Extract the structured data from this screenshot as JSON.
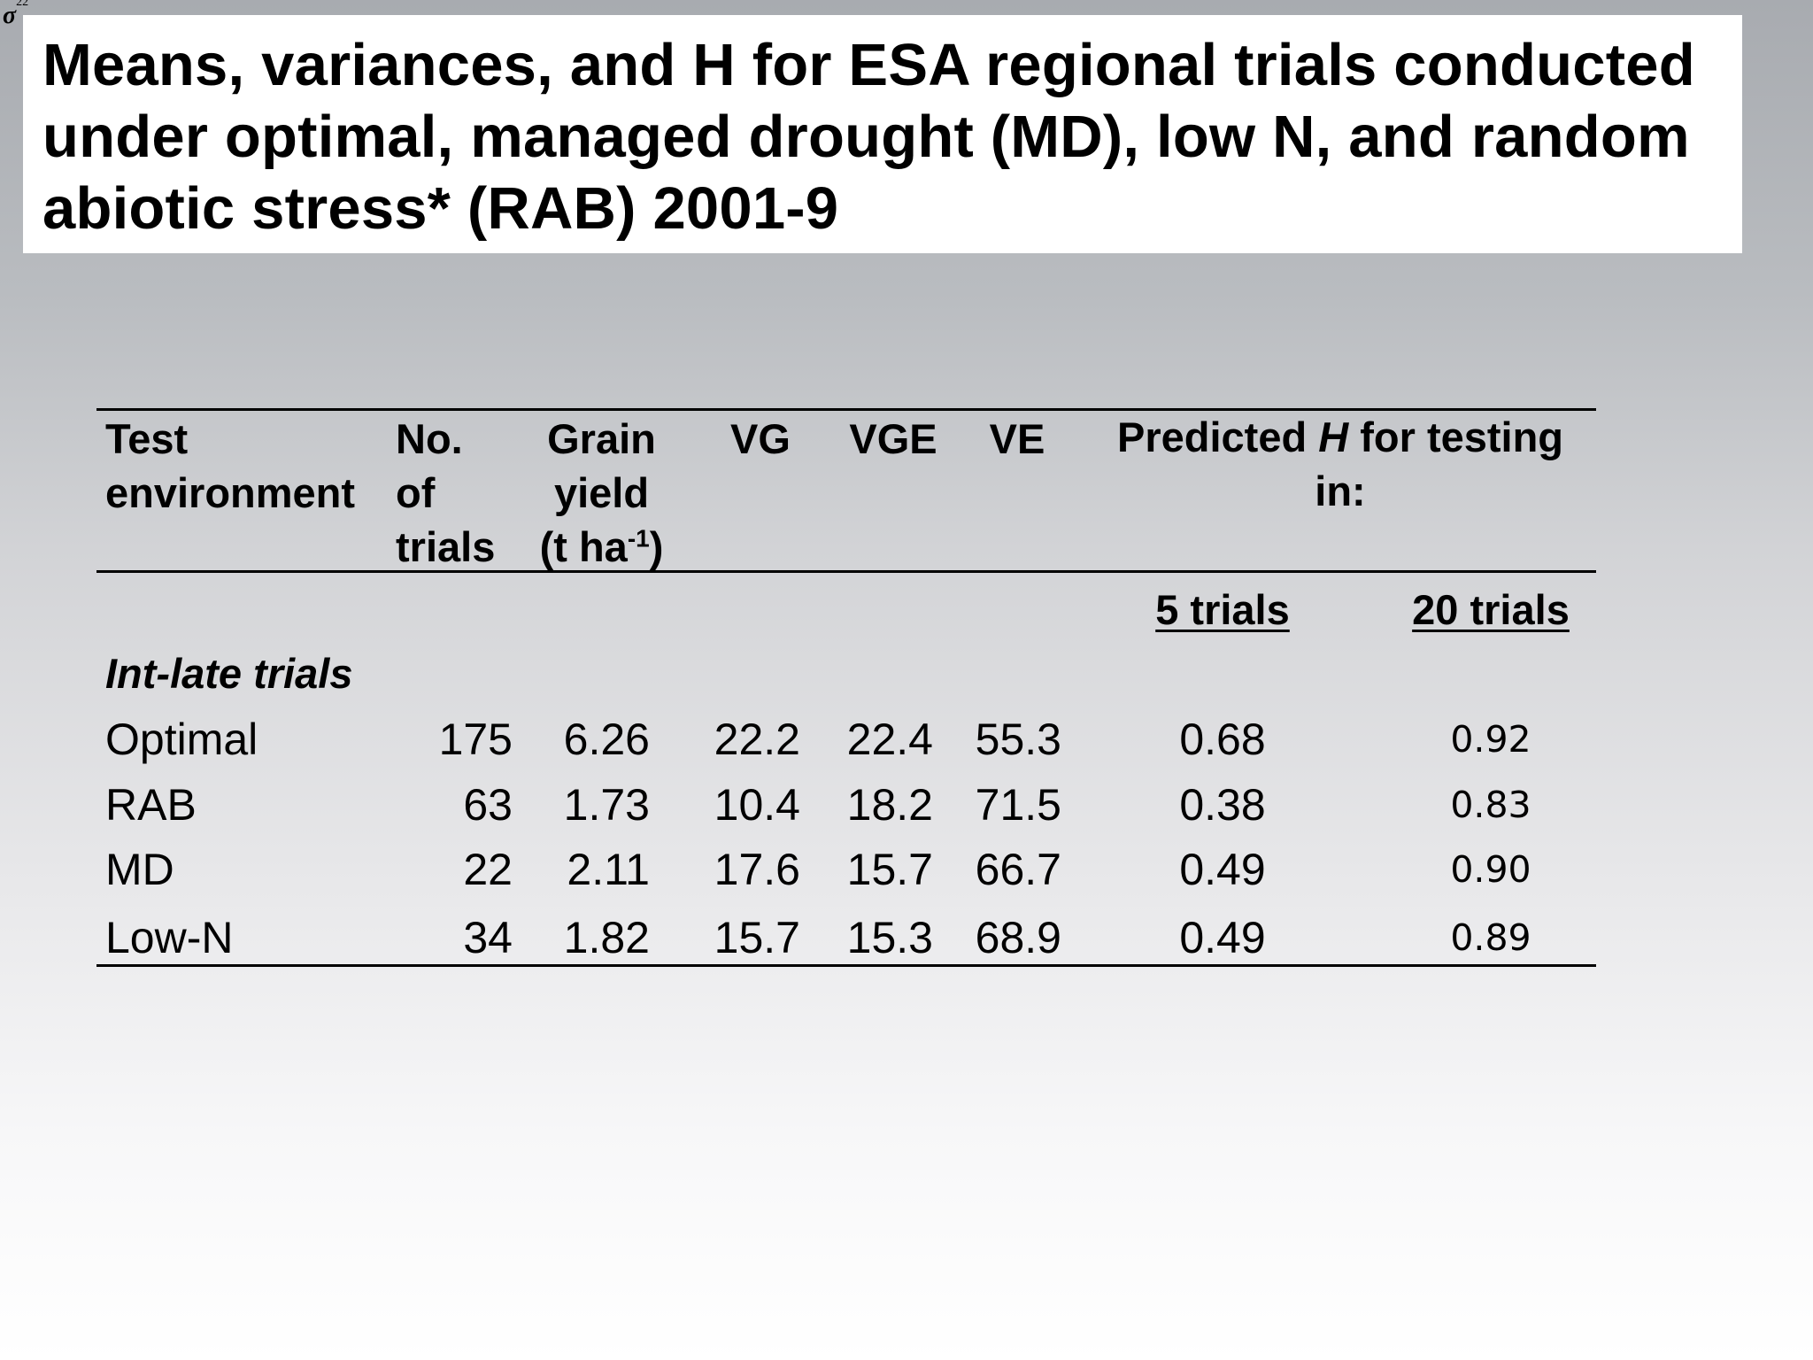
{
  "corner_symbol": {
    "base": "σ",
    "sup": "22"
  },
  "title": "Means, variances, and H for ESA regional trials conducted under optimal, managed drought (MD), low N, and random abiotic stress* (RAB) 2001-9",
  "table": {
    "headers": {
      "test_env": [
        "Test",
        "environment"
      ],
      "no_trials": [
        "No.",
        "of",
        "trials"
      ],
      "grain_yield": [
        "Grain",
        "yield"
      ],
      "grain_unit_pre": "(t ha",
      "grain_unit_sup": "-1",
      "grain_unit_post": ")",
      "vg": "VG",
      "vge": "VGE",
      "ve": "VE",
      "predicted_pre": "Predicted ",
      "predicted_h": "H",
      "predicted_post": " for testing",
      "predicted_line2": "in:",
      "five_trials": "5 trials",
      "twenty_trials": "20 trials"
    },
    "section_label": "Int-late trials",
    "rows": [
      {
        "env": "Optimal",
        "n": "175",
        "yield": "6.26",
        "vg": "22.2",
        "vge": "22.4",
        "ve": "55.3",
        "h5": "0.68",
        "h20": "0.92"
      },
      {
        "env": "RAB",
        "n": "63",
        "yield": "1.73",
        "vg": "10.4",
        "vge": "18.2",
        "ve": "71.5",
        "h5": "0.38",
        "h20": "0.83"
      },
      {
        "env": "MD",
        "n": "22",
        "yield": "2.11",
        "vg": "17.6",
        "vge": "15.7",
        "ve": "66.7",
        "h5": "0.49",
        "h20": "0.90"
      },
      {
        "env": "Low-N",
        "n": "34",
        "yield": "1.82",
        "vg": "15.7",
        "vge": "15.3",
        "ve": "68.9",
        "h5": "0.49",
        "h20": "0.89"
      }
    ]
  }
}
